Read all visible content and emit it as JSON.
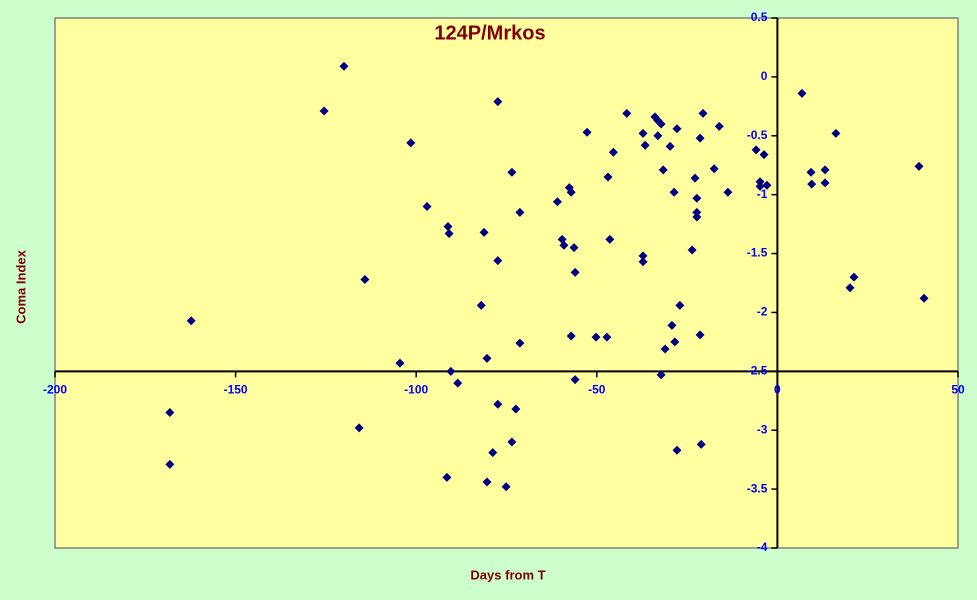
{
  "chart_data": {
    "type": "scatter",
    "title": "124P/Mrkos",
    "xlabel": "Days from T",
    "ylabel": "Coma Index",
    "color": "#000080",
    "x": [
      -120,
      -125.5,
      -77.4,
      -101.5,
      -52.7,
      -41.7,
      -33.9,
      -33.1,
      -32.2,
      -37.2,
      -33.1,
      -27.8,
      -20.6,
      -21.4,
      -36.6,
      -29.7,
      -45.4,
      -16.1,
      -17.5,
      -31.6,
      -46.9,
      -73.5,
      -22.8,
      -5.9,
      -3.7,
      -4.8,
      -4.8,
      -2.9,
      -13.7,
      -28.6,
      -22.3,
      -57.6,
      -57.1,
      -60.9,
      -97,
      -71.3,
      -22.3,
      -22.3,
      -91.2,
      -90.9,
      -81.2,
      -59.6,
      -59.1,
      -46.4,
      -56.3,
      -37.2,
      -37.2,
      -23.6,
      -77.4,
      -56,
      -114.2,
      6.8,
      16.2,
      9.3,
      13.2,
      9.5,
      13.2,
      39.2,
      21.2,
      20.1,
      40.6,
      -162.3,
      -82,
      -27,
      -29.2,
      -57.1,
      -50.2,
      -47.2,
      -21.4,
      -28.4,
      -71.3,
      -31.1,
      -80.4,
      -104.5,
      -90.4,
      -32.2,
      -56,
      -88.5,
      -168.2,
      -77.4,
      -72.4,
      -115.8,
      -73.5,
      -21.1,
      -27.8,
      -78.8,
      -168.2,
      -91.5,
      -80.4,
      -75.1
    ],
    "values": [
      0.09,
      -0.29,
      -0.21,
      -0.56,
      -0.47,
      -0.31,
      -0.34,
      -0.37,
      -0.4,
      -0.48,
      -0.5,
      -0.44,
      -0.31,
      -0.52,
      -0.58,
      -0.59,
      -0.64,
      -0.42,
      -0.78,
      -0.79,
      -0.85,
      -0.81,
      -0.86,
      -0.62,
      -0.66,
      -0.89,
      -0.93,
      -0.92,
      -0.98,
      -0.98,
      -1.03,
      -0.94,
      -0.98,
      -1.06,
      -1.1,
      -1.15,
      -1.15,
      -1.19,
      -1.27,
      -1.33,
      -1.32,
      -1.38,
      -1.43,
      -1.38,
      -1.45,
      -1.52,
      -1.57,
      -1.47,
      -1.56,
      -1.66,
      -1.72,
      -0.14,
      -0.48,
      -0.81,
      -0.79,
      -0.91,
      -0.9,
      -0.76,
      -1.7,
      -1.79,
      -1.88,
      -2.07,
      -1.94,
      -1.94,
      -2.11,
      -2.2,
      -2.21,
      -2.21,
      -2.19,
      -2.25,
      -2.26,
      -2.31,
      -2.39,
      -2.43,
      -2.5,
      -2.53,
      -2.57,
      -2.6,
      -2.85,
      -2.78,
      -2.82,
      -2.98,
      -3.1,
      -3.12,
      -3.17,
      -3.19,
      -3.29,
      -3.4,
      -3.44,
      -3.48
    ],
    "xlim": [
      -200,
      50
    ],
    "xticks": [
      -200,
      -150,
      -100,
      -50,
      0,
      50
    ],
    "ylim": [
      -4,
      0.5
    ],
    "yticks": [
      0.5,
      0,
      -0.5,
      -1,
      -1.5,
      -2,
      -2.5,
      -3,
      -3.5,
      -4
    ],
    "x_axis_crosses_at": -2.5,
    "y_axis_crosses_at": 0
  }
}
